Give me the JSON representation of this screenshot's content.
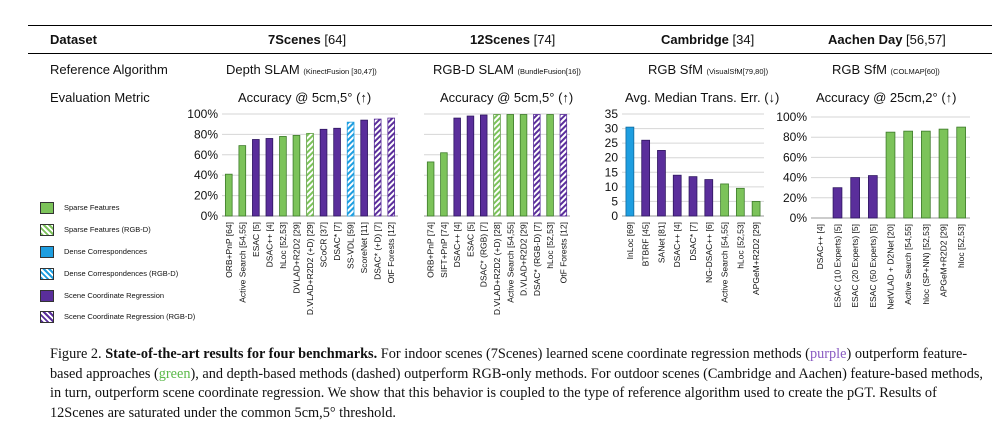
{
  "header": {
    "dataset_label": "Dataset",
    "datasets": [
      {
        "name": "7Scenes",
        "cite": " [64]"
      },
      {
        "name": "12Scenes",
        "cite": " [74]"
      },
      {
        "name": "Cambridge",
        "cite": " [34]"
      },
      {
        "name": "Aachen Day",
        "cite": " [56,57]"
      }
    ]
  },
  "rows": {
    "reference_label": "Reference Algorithm",
    "metric_label": "Evaluation Metric"
  },
  "reference": [
    {
      "main": "Depth SLAM",
      "sub": "(KinectFusion [30,47])"
    },
    {
      "main": "RGB-D SLAM",
      "sub": "(BundleFusion[16])"
    },
    {
      "main": "RGB SfM",
      "sub": "(VisualSfM[79,80])"
    },
    {
      "main": "RGB SfM",
      "sub": "(COLMAP[60])"
    }
  ],
  "metrics": [
    "Accuracy @ 5cm,5° (↑)",
    "Accuracy @ 5cm,5° (↑)",
    "Avg. Median Trans. Err. (↓)",
    "Accuracy @ 25cm,2° (↑)"
  ],
  "legend": [
    {
      "label": "Sparse Features",
      "type": "sparse"
    },
    {
      "label": "Sparse Features (RGB-D)",
      "type": "sparse_rgbd"
    },
    {
      "label": "Dense Correspondences",
      "type": "dense"
    },
    {
      "label": "Dense Correspondences (RGB-D)",
      "type": "dense_rgbd"
    },
    {
      "label": "Scene Coordinate Regression",
      "type": "scr"
    },
    {
      "label": "Scene Coordinate Regression (RGB-D)",
      "type": "scr_rgbd"
    }
  ],
  "colors": {
    "sparse": "#7cc35a",
    "dense": "#1e9ee0",
    "scr": "#5a2e9b",
    "caption_purple": "#8a5cc2",
    "caption_green": "#5bb94a"
  },
  "chart_data": [
    {
      "type": "bar",
      "ylim": [
        0,
        100
      ],
      "yticks": [
        "0%",
        "20%",
        "40%",
        "60%",
        "80%",
        "100%"
      ],
      "ytick_values": [
        0,
        20,
        40,
        60,
        80,
        100
      ],
      "categories": [
        "ORB+PnP [64]",
        "Active Search [54,55]",
        "ESAC [5]",
        "DSAC++ [4]",
        "hLoc [52,53]",
        "DVLAD+R2D2 [29]",
        "D.VLAD+R2D2 (+D) [29]",
        "SCoCR [37]",
        "DSAC* [7]",
        "SS-VDL [59]",
        "ScoreNet [11]",
        "DSAC* (+D) [7]",
        "OtF Forests [12]"
      ],
      "values": [
        41,
        69,
        75,
        76,
        78,
        79,
        81,
        85,
        86,
        92,
        94,
        95,
        96
      ],
      "kinds": [
        "sparse",
        "sparse",
        "scr",
        "scr",
        "sparse",
        "sparse",
        "sparse_rgbd",
        "scr",
        "scr",
        "dense_rgbd",
        "scr",
        "scr_rgbd",
        "scr_rgbd"
      ]
    },
    {
      "type": "bar",
      "ylim": [
        0,
        100
      ],
      "yticks": [],
      "ytick_values": [],
      "categories": [
        "ORB+PnP [74]",
        "SIFT+PnP [74]",
        "DSAC++ [4]",
        "ESAC [5]",
        "DSAC* (RGB) [7]",
        "D.VLAD+R2D2 (+D) [28]",
        "Active Search [54,55]",
        "D.VLAD+R2D2 [29]",
        "DSAC* (RGB-D) [7]",
        "hLoc [52,53]",
        "OtF Forests [12]"
      ],
      "values": [
        53,
        62,
        96,
        98,
        99,
        99.5,
        99.5,
        99.5,
        99.5,
        99.5,
        99.5
      ],
      "kinds": [
        "sparse",
        "sparse",
        "scr",
        "scr",
        "scr",
        "sparse_rgbd",
        "sparse",
        "sparse",
        "scr_rgbd",
        "sparse",
        "scr_rgbd"
      ]
    },
    {
      "type": "bar",
      "ylim": [
        0,
        35
      ],
      "yticks": [
        "0",
        "5",
        "10",
        "15",
        "20",
        "25",
        "30",
        "35"
      ],
      "ytick_values": [
        0,
        5,
        10,
        15,
        20,
        25,
        30,
        35
      ],
      "categories": [
        "InLoc [69]",
        "BTBRF [45]",
        "SANet [81]",
        "DSAC++ [4]",
        "DSAC* [7]",
        "NG-DSAC++ [6]",
        "Active Search [54,55]",
        "hLoc [52,53]",
        "APGeM+R2D2 [29]"
      ],
      "values": [
        30.5,
        26,
        22.5,
        14,
        13.5,
        12.5,
        11,
        9.5,
        5
      ],
      "kinds": [
        "dense",
        "scr",
        "scr",
        "scr",
        "scr",
        "scr",
        "sparse",
        "sparse",
        "sparse"
      ]
    },
    {
      "type": "bar",
      "ylim": [
        0,
        100
      ],
      "yticks": [
        "0%",
        "20%",
        "40%",
        "60%",
        "80%",
        "100%"
      ],
      "ytick_values": [
        0,
        20,
        40,
        60,
        80,
        100
      ],
      "categories": [
        "DSAC++ [4]",
        "ESAC (10 Experts) [5]",
        "ESAC (20 Experts) [5]",
        "ESAC (50 Experts) [5]",
        "NetVLAD + D2Net [20]",
        "Active Search [54,55]",
        "hloc (SP+NN) [52,53]",
        "APGeM+R2D2 [29]",
        "hloc [52,53]"
      ],
      "values": [
        0,
        30,
        40,
        42,
        85,
        86,
        86,
        88,
        90
      ],
      "kinds": [
        "scr",
        "scr",
        "scr",
        "scr",
        "sparse",
        "sparse",
        "sparse",
        "sparse",
        "sparse"
      ]
    }
  ],
  "caption": {
    "fig": "Figure 2.",
    "bold": "State-of-the-art results for four benchmarks.",
    "p1": "For indoor scenes (7Scenes) learned scene coordinate regression methods (",
    "w_purple": "purple",
    "p2": ") outperform feature-based approaches (",
    "w_green": "green",
    "p3": "), and depth-based methods (dashed) outperform RGB-only methods. For outdoor scenes (Cambridge and Aachen) feature-based methods, in turn, outperform scene coordinate regression. We show that this behavior is coupled to the type of reference algorithm used to create the pGT. Results of 12Scenes are saturated under the common 5cm,5° threshold."
  }
}
